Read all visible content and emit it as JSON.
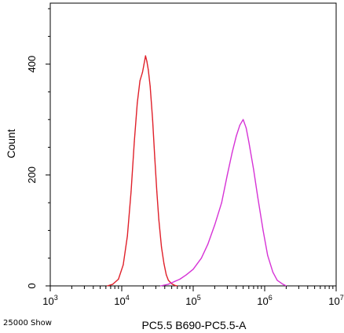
{
  "chart_data": {
    "type": "line",
    "title": "",
    "xlabel": "PC5.5 B690-PC5.5-A",
    "ylabel": "Count",
    "x_scale": "log",
    "xlim": [
      1000,
      10000000
    ],
    "ylim": [
      0,
      510
    ],
    "x_ticks": [
      {
        "base": "10",
        "exp": "3",
        "value": 1000
      },
      {
        "base": "10",
        "exp": "4",
        "value": 10000
      },
      {
        "base": "10",
        "exp": "5",
        "value": 100000
      },
      {
        "base": "10",
        "exp": "6",
        "value": 1000000
      },
      {
        "base": "10",
        "exp": "7",
        "value": 10000000
      }
    ],
    "y_ticks": [
      {
        "label": "0",
        "value": 0
      },
      {
        "label": "200",
        "value": 200
      },
      {
        "label": "400",
        "value": 400
      }
    ],
    "grid": false,
    "legend": "none",
    "series": [
      {
        "color": "#e0202a",
        "x": [
          6300,
          7500,
          9000,
          10500,
          12000,
          13500,
          15000,
          16500,
          18000,
          19500,
          20500,
          21500,
          22500,
          23500,
          25000,
          27000,
          29000,
          31000,
          33000,
          36000,
          39000,
          42000,
          45000,
          50000,
          55000,
          60000
        ],
        "y": [
          0,
          3,
          12,
          38,
          90,
          170,
          260,
          330,
          370,
          385,
          400,
          415,
          405,
          390,
          360,
          300,
          230,
          170,
          120,
          70,
          40,
          20,
          10,
          4,
          1,
          0
        ]
      },
      {
        "color": "#d633d6",
        "x": [
          35000,
          45000,
          55000,
          65000,
          80000,
          100000,
          130000,
          160000,
          200000,
          250000,
          300000,
          350000,
          400000,
          450000,
          500000,
          550000,
          600000,
          700000,
          800000,
          950000,
          1100000,
          1300000,
          1500000,
          1800000,
          2000000
        ],
        "y": [
          0,
          3,
          8,
          12,
          20,
          30,
          50,
          75,
          110,
          150,
          200,
          240,
          270,
          290,
          300,
          285,
          260,
          210,
          160,
          100,
          55,
          25,
          10,
          3,
          0
        ]
      }
    ],
    "footer_label": "25000 Show"
  }
}
